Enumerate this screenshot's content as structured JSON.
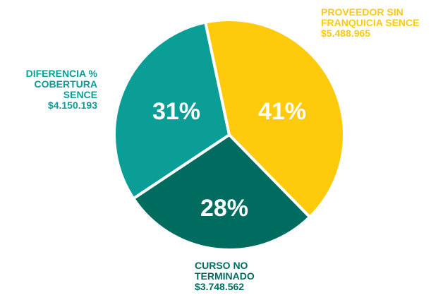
{
  "chart_data": {
    "type": "pie",
    "categories": [
      "PROVEEDOR SIN FRANQUICIA SENCE",
      "CURSO NO TERMINADO",
      "DIFERENCIA % COBERTURA SENCE"
    ],
    "values": [
      41,
      28,
      31
    ],
    "value_labels": [
      "41%",
      "28%",
      "31%"
    ],
    "amount_labels": [
      "$5.488.965",
      "$3.748.562",
      "$4.150.193"
    ],
    "colors": [
      "#fdca0c",
      "#006b5f",
      "#0a9e97"
    ]
  }
}
